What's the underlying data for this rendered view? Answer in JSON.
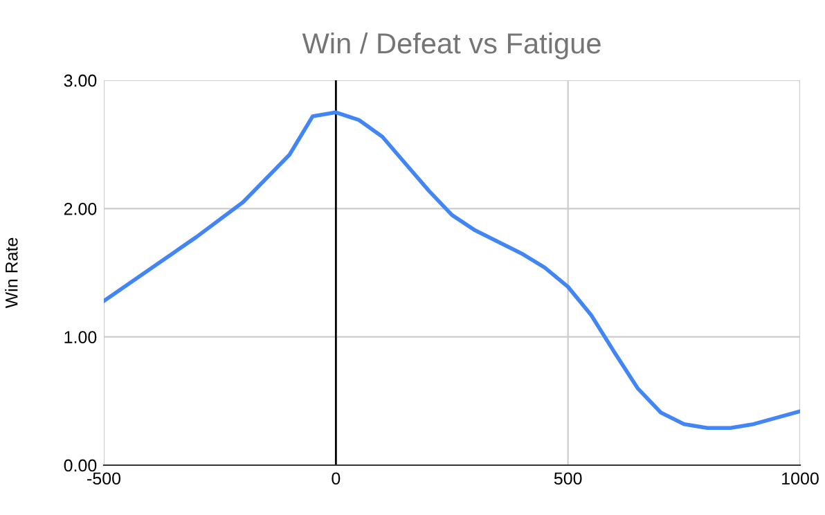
{
  "chart_data": {
    "type": "line",
    "title": "Win / Defeat vs Fatigue",
    "ylabel": "Win Rate",
    "x": [
      -500,
      -400,
      -300,
      -200,
      -100,
      -50,
      0,
      50,
      100,
      150,
      200,
      250,
      300,
      350,
      400,
      450,
      500,
      550,
      600,
      650,
      700,
      750,
      800,
      850,
      900,
      950,
      1000
    ],
    "series": [
      {
        "color": "#4285f4",
        "values": [
          1.28,
          1.53,
          1.78,
          2.05,
          2.42,
          2.72,
          2.75,
          2.69,
          2.56,
          2.35,
          2.14,
          1.95,
          1.83,
          1.74,
          1.65,
          1.54,
          1.39,
          1.17,
          0.88,
          0.6,
          0.41,
          0.32,
          0.29,
          0.29,
          0.32,
          0.37,
          0.42
        ]
      }
    ],
    "xlim": [
      -500,
      1000
    ],
    "xticks": [
      -500,
      0,
      500,
      1000
    ],
    "ylim": [
      0,
      3
    ],
    "yticks": [
      {
        "value": 0,
        "label": "0.00"
      },
      {
        "value": 1,
        "label": "1.00"
      },
      {
        "value": 2,
        "label": "2.00"
      },
      {
        "value": 3,
        "label": "3.00"
      }
    ],
    "grid": true,
    "marker": "none",
    "line_style": "solid",
    "ref_lines": [
      {
        "axis": "x",
        "value": 0,
        "color": "#000000"
      }
    ]
  }
}
